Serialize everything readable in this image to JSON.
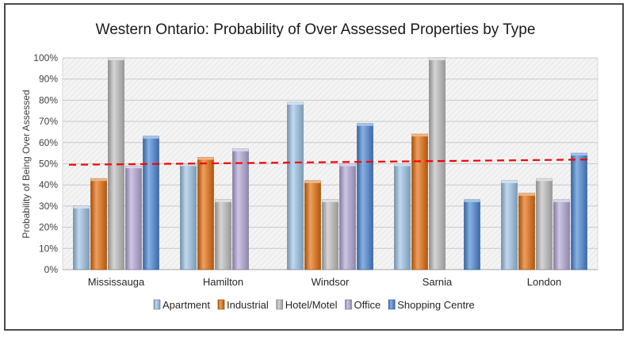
{
  "chart_data": {
    "type": "bar",
    "title": "Western Ontario: Probability of Over Assessed Properties by Type",
    "xlabel": "",
    "ylabel": "Probability of Being Over Assessed",
    "ylim": [
      0,
      100
    ],
    "yticks": [
      "0%",
      "10%",
      "20%",
      "30%",
      "40%",
      "50%",
      "60%",
      "70%",
      "80%",
      "90%",
      "100%"
    ],
    "categories": [
      "Mississauga",
      "Hamilton",
      "Windsor",
      "Sarnia",
      "London"
    ],
    "series": [
      {
        "name": "Apartment",
        "color": "#9dc3e6",
        "values": [
          30,
          50,
          79,
          50,
          42
        ]
      },
      {
        "name": "Industrial",
        "color": "#e36c0a",
        "values": [
          43,
          53,
          42,
          64,
          36
        ]
      },
      {
        "name": "Hotel/Motel",
        "color": "#bfbfbf",
        "values": [
          100,
          33,
          33,
          100,
          43
        ]
      },
      {
        "name": "Office",
        "color": "#b4a7d6",
        "values": [
          49,
          57,
          50,
          null,
          33
        ]
      },
      {
        "name": "Shopping Centre",
        "color": "#4a86d4",
        "values": [
          63,
          null,
          69,
          33,
          55
        ]
      }
    ],
    "trendline": {
      "style": "dashed",
      "color": "#ff0000",
      "start": 49.5,
      "end": 52
    }
  }
}
